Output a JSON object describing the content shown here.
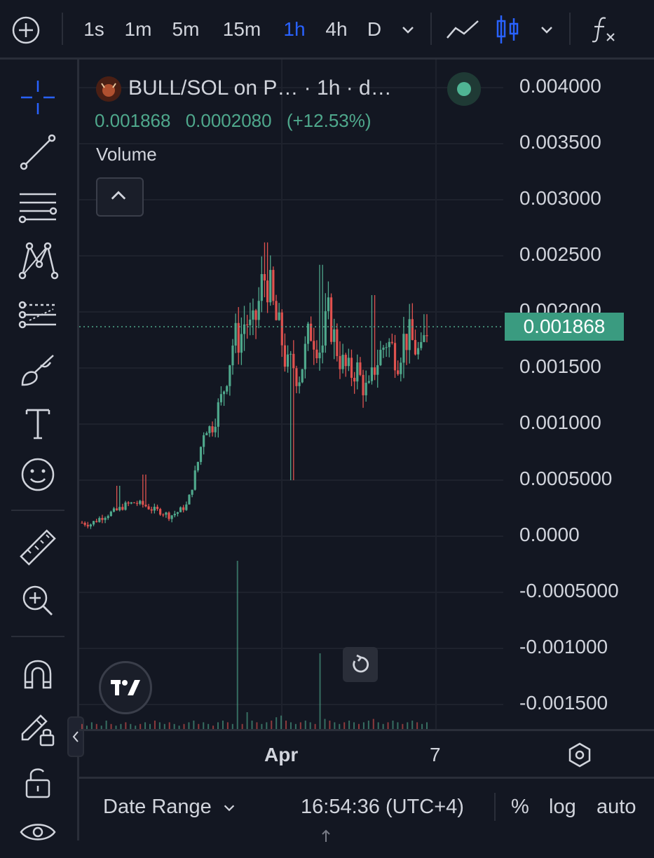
{
  "topbar": {
    "intervals": [
      {
        "label": "1s",
        "active": false
      },
      {
        "label": "1m",
        "active": false
      },
      {
        "label": "5m",
        "active": false
      },
      {
        "label": "15m",
        "active": false
      },
      {
        "label": "1h",
        "active": true
      },
      {
        "label": "4h",
        "active": false
      },
      {
        "label": "D",
        "active": false
      }
    ],
    "icons": [
      "add-icon",
      "chevron-down-icon",
      "line-chart-icon",
      "candles-icon",
      "chevron-down-icon",
      "function-icon"
    ]
  },
  "toolbar": {
    "tools": [
      "crosshair-icon",
      "trend-line-icon",
      "fib-lines-icon",
      "pattern-icon",
      "forecast-icon",
      "brush-icon",
      "text-icon",
      "emoji-icon",
      "ruler-icon",
      "zoom-icon",
      "magnet-icon",
      "lock-drawing-icon",
      "lock-icon",
      "eye-icon"
    ]
  },
  "legend": {
    "title": "BULL/SOL on P…  · 1h · d…",
    "price": "0.001868",
    "change": "0.0002080",
    "change_pct": "(+12.53%)",
    "volume_label": "Volume"
  },
  "chart_data": {
    "type": "candlestick",
    "symbol": "BULL/SOL",
    "interval": "1h",
    "y_ticks": [
      "0.004000",
      "0.003500",
      "0.003000",
      "0.002500",
      "0.002000",
      "0.001500",
      "0.001000",
      "0.0005000",
      "0.0000",
      "-0.0005000",
      "-0.001000",
      "-0.001500"
    ],
    "ylim": [
      -0.0017,
      0.0041
    ],
    "last_price": "0.001868",
    "x_ticks": [
      "Apr",
      "7"
    ],
    "close_path": [
      [
        0,
        0.00012
      ],
      [
        6,
        0.00011
      ],
      [
        12,
        0.00016
      ],
      [
        18,
        0.0002
      ],
      [
        24,
        0.00023
      ],
      [
        30,
        0.00028
      ],
      [
        36,
        0.0003
      ],
      [
        42,
        0.00028
      ],
      [
        48,
        0.00024
      ],
      [
        54,
        0.00022
      ],
      [
        60,
        0.00018
      ],
      [
        66,
        0.00022
      ],
      [
        72,
        0.00028
      ],
      [
        76,
        0.00048
      ],
      [
        80,
        0.0007
      ],
      [
        84,
        0.001
      ],
      [
        88,
        0.00095
      ],
      [
        92,
        0.0011
      ],
      [
        96,
        0.00125
      ],
      [
        100,
        0.0015
      ],
      [
        104,
        0.00178
      ],
      [
        108,
        0.00175
      ],
      [
        112,
        0.00195
      ],
      [
        116,
        0.0018
      ],
      [
        120,
        0.002
      ],
      [
        124,
        0.00232
      ],
      [
        128,
        0.00225
      ],
      [
        132,
        0.00195
      ],
      [
        136,
        0.0018
      ],
      [
        140,
        0.0015
      ],
      [
        144,
        0.00155
      ],
      [
        148,
        0.0014
      ],
      [
        152,
        0.0016
      ],
      [
        156,
        0.00185
      ],
      [
        160,
        0.00175
      ],
      [
        164,
        0.00165
      ],
      [
        168,
        0.002
      ],
      [
        172,
        0.0018
      ],
      [
        176,
        0.0016
      ],
      [
        180,
        0.0015
      ],
      [
        184,
        0.00145
      ],
      [
        188,
        0.0015
      ],
      [
        192,
        0.00135
      ],
      [
        196,
        0.00128
      ],
      [
        200,
        0.0015
      ],
      [
        204,
        0.00162
      ],
      [
        208,
        0.00175
      ],
      [
        212,
        0.00168
      ],
      [
        216,
        0.00158
      ],
      [
        220,
        0.00175
      ],
      [
        224,
        0.00178
      ],
      [
        228,
        0.00168
      ],
      [
        232,
        0.0016
      ],
      [
        236,
        0.00187
      ]
    ],
    "wick_spikes": [
      {
        "x": 24,
        "high": 0.00045
      },
      {
        "x": 42,
        "high": 0.00055
      },
      {
        "x": 125,
        "high": 0.00262
      },
      {
        "x": 143,
        "low": 0.0005
      },
      {
        "x": 164,
        "high": 0.00242
      },
      {
        "x": 194,
        "low": 0.0012
      },
      {
        "x": 200,
        "high": 0.00215
      },
      {
        "x": 235,
        "high": 0.00198
      }
    ],
    "volume": [
      3,
      2,
      4,
      3,
      2,
      5,
      3,
      2,
      3,
      4,
      3,
      2,
      3,
      4,
      3,
      5,
      4,
      3,
      4,
      3,
      2,
      3,
      4,
      5,
      3,
      4,
      3,
      2,
      4,
      5,
      4,
      3,
      100,
      3,
      10,
      5,
      4,
      3,
      4,
      5,
      7,
      8,
      5,
      4,
      3,
      4,
      5,
      4,
      3,
      45,
      6,
      5,
      4,
      3,
      4,
      5,
      4,
      3,
      4,
      5,
      6,
      4,
      3,
      4,
      5,
      4,
      3,
      4,
      5,
      4,
      3,
      4
    ]
  },
  "xaxis": {
    "ticks": [
      "Apr",
      "7"
    ]
  },
  "bottombar": {
    "date_range": "Date Range",
    "time": "16:54:36 (UTC+4)",
    "percent": "%",
    "log": "log",
    "auto": "auto"
  },
  "colors": {
    "up": "#4fa88c",
    "down": "#e0524f",
    "accent": "#2962ff",
    "price_tag": "#3a9b80",
    "grid": "#2a2e39"
  }
}
